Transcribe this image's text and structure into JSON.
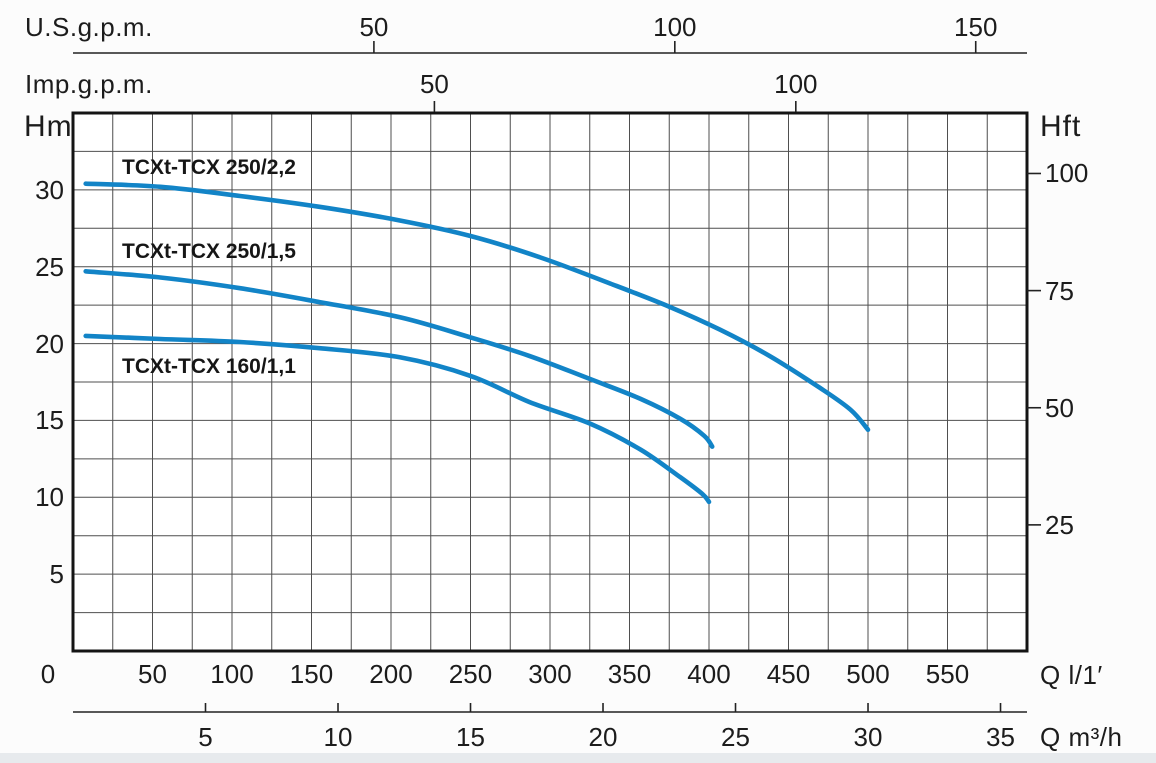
{
  "labels": {
    "us_gpm_axis": "U.S.g.p.m.",
    "imp_gpm_axis": "Imp.g.p.m.",
    "head_m_axis": "Hm",
    "head_ft_axis": "Hft",
    "flow_l_axis": "Q l/1′",
    "flow_m3h_axis": "Q m³/h"
  },
  "colors": {
    "curve": "#1284c7",
    "grid": "#4f4f4f",
    "border": "#141414",
    "axis_line": "#222222",
    "text": "#1c1c1c",
    "plot_bg": "#ffffff",
    "footer_strip": "#e7eaed"
  },
  "chart_data": {
    "type": "line",
    "title": "",
    "x_axis_l_per_min": {
      "label": "Q l/1′",
      "min": 0,
      "max": 600,
      "tick_labels": [
        0,
        50,
        100,
        150,
        200,
        250,
        300,
        350,
        400,
        450,
        500,
        550
      ],
      "gridline_step": 25
    },
    "x_axis_m3_per_h": {
      "label": "Q m³/h",
      "tick_labels": [
        5,
        10,
        15,
        20,
        25,
        30,
        35
      ],
      "liters_per_min_per_unit": 16.667
    },
    "x_axis_us_gpm": {
      "label": "U.S.g.p.m.",
      "tick_labels": [
        50,
        100,
        150
      ],
      "liters_per_min_per_unit": 3.785
    },
    "x_axis_imp_gpm": {
      "label": "Imp.g.p.m.",
      "tick_labels": [
        50,
        100
      ],
      "liters_per_min_per_unit": 4.546
    },
    "y_axis_m": {
      "label": "Hm",
      "min": 0,
      "max": 35,
      "tick_labels": [
        5,
        10,
        15,
        20,
        25,
        30
      ],
      "gridline_step": 2.5
    },
    "y_axis_ft": {
      "label": "Hft",
      "tick_labels": [
        25,
        50,
        75,
        100
      ],
      "meters_per_unit": 0.3048
    },
    "series": [
      {
        "name": "TCXt-TCX 250/2,2",
        "points_q_l_per_min_vs_h_m": [
          [
            8,
            30.4
          ],
          [
            55,
            30.2
          ],
          [
            105,
            29.6
          ],
          [
            155,
            28.9
          ],
          [
            206,
            28.0
          ],
          [
            250,
            27.0
          ],
          [
            294,
            25.6
          ],
          [
            338,
            23.9
          ],
          [
            375,
            22.4
          ],
          [
            407,
            20.9
          ],
          [
            438,
            19.2
          ],
          [
            470,
            17.1
          ],
          [
            489,
            15.7
          ],
          [
            500,
            14.4
          ]
        ]
      },
      {
        "name": "TCXt-TCX 250/1,5",
        "points_q_l_per_min_vs_h_m": [
          [
            8,
            24.7
          ],
          [
            55,
            24.3
          ],
          [
            105,
            23.6
          ],
          [
            155,
            22.7
          ],
          [
            206,
            21.7
          ],
          [
            250,
            20.4
          ],
          [
            287,
            19.2
          ],
          [
            325,
            17.7
          ],
          [
            357,
            16.4
          ],
          [
            382,
            15.1
          ],
          [
            397,
            14.0
          ],
          [
            402,
            13.3
          ]
        ]
      },
      {
        "name": "TCXt-TCX 160/1,1",
        "points_q_l_per_min_vs_h_m": [
          [
            8,
            20.5
          ],
          [
            55,
            20.3
          ],
          [
            105,
            20.1
          ],
          [
            155,
            19.7
          ],
          [
            206,
            19.1
          ],
          [
            250,
            17.9
          ],
          [
            287,
            16.2
          ],
          [
            325,
            14.8
          ],
          [
            357,
            13.1
          ],
          [
            382,
            11.3
          ],
          [
            396,
            10.2
          ],
          [
            400,
            9.7
          ]
        ]
      }
    ],
    "legend_position": "inline-labels",
    "grid": true
  }
}
